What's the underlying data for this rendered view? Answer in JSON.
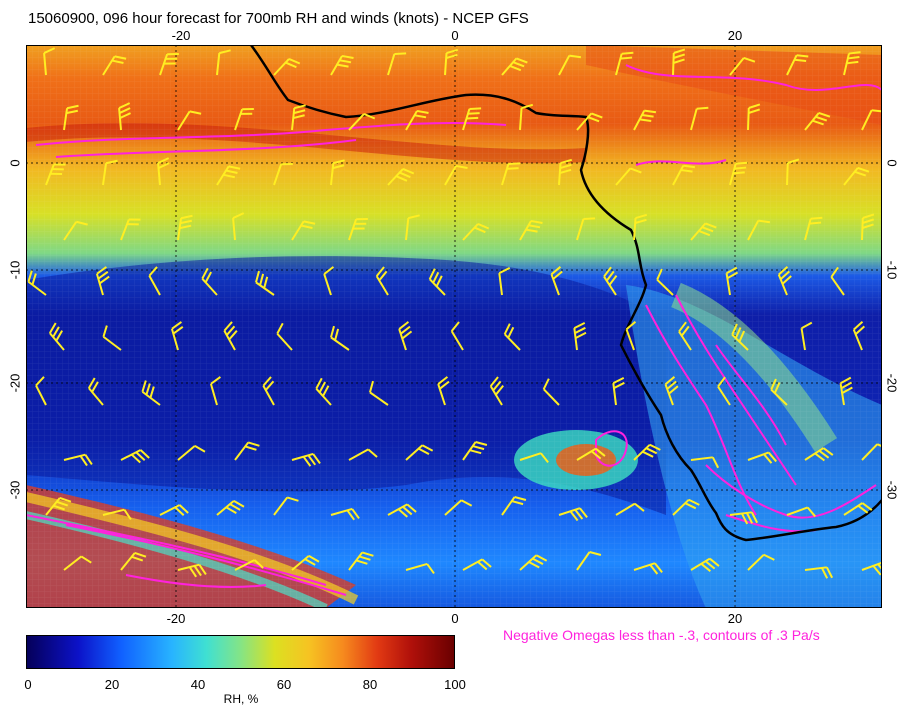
{
  "title": "15060900, 096 hour forecast for 700mb RH and winds (knots) - NCEP GFS",
  "axis_ticks": {
    "top": [
      "-20",
      "0",
      "20"
    ],
    "bottom": [
      "-20",
      "0",
      "20"
    ],
    "left": [
      "0",
      "-10",
      "-20",
      "-30"
    ],
    "right": [
      "0",
      "-10",
      "-20",
      "-30"
    ]
  },
  "caption": "Negative Omegas less than -.3, contours of .3 Pa/s",
  "colorbar": {
    "ticks": [
      "0",
      "20",
      "40",
      "60",
      "80",
      "100"
    ],
    "label": "RH, %"
  },
  "colors": {
    "omega_contours": "#ff22dd",
    "wind_barbs": "#ffee22",
    "coastline": "#000000"
  },
  "map": {
    "field": "700mb RH",
    "units": "%",
    "overlays": [
      "wind barbs (knots)",
      "negative omega contours",
      "coastline"
    ]
  }
}
